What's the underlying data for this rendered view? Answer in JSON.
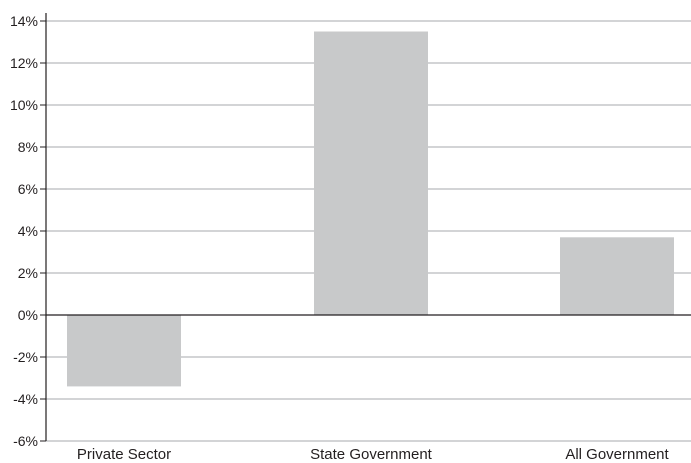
{
  "chart_data": {
    "type": "bar",
    "title": "",
    "xlabel": "",
    "ylabel": "",
    "categories": [
      "Private Sector",
      "State Government",
      "All Government"
    ],
    "values": [
      -3.4,
      13.5,
      3.7
    ],
    "ylim": [
      -6,
      14
    ],
    "yticks": [
      14,
      12,
      10,
      8,
      6,
      4,
      2,
      0,
      -2,
      -4,
      -6
    ],
    "ytick_labels": [
      "14%",
      "12%",
      "10%",
      "8%",
      "6%",
      "4%",
      "2%",
      "0%",
      "-2%",
      "-4%",
      "-6%"
    ],
    "grid": "horizontal",
    "legend": "none",
    "bar_color": "#c8c9ca",
    "grid_color": "#a7a9ac",
    "axis_color": "#231f20"
  }
}
